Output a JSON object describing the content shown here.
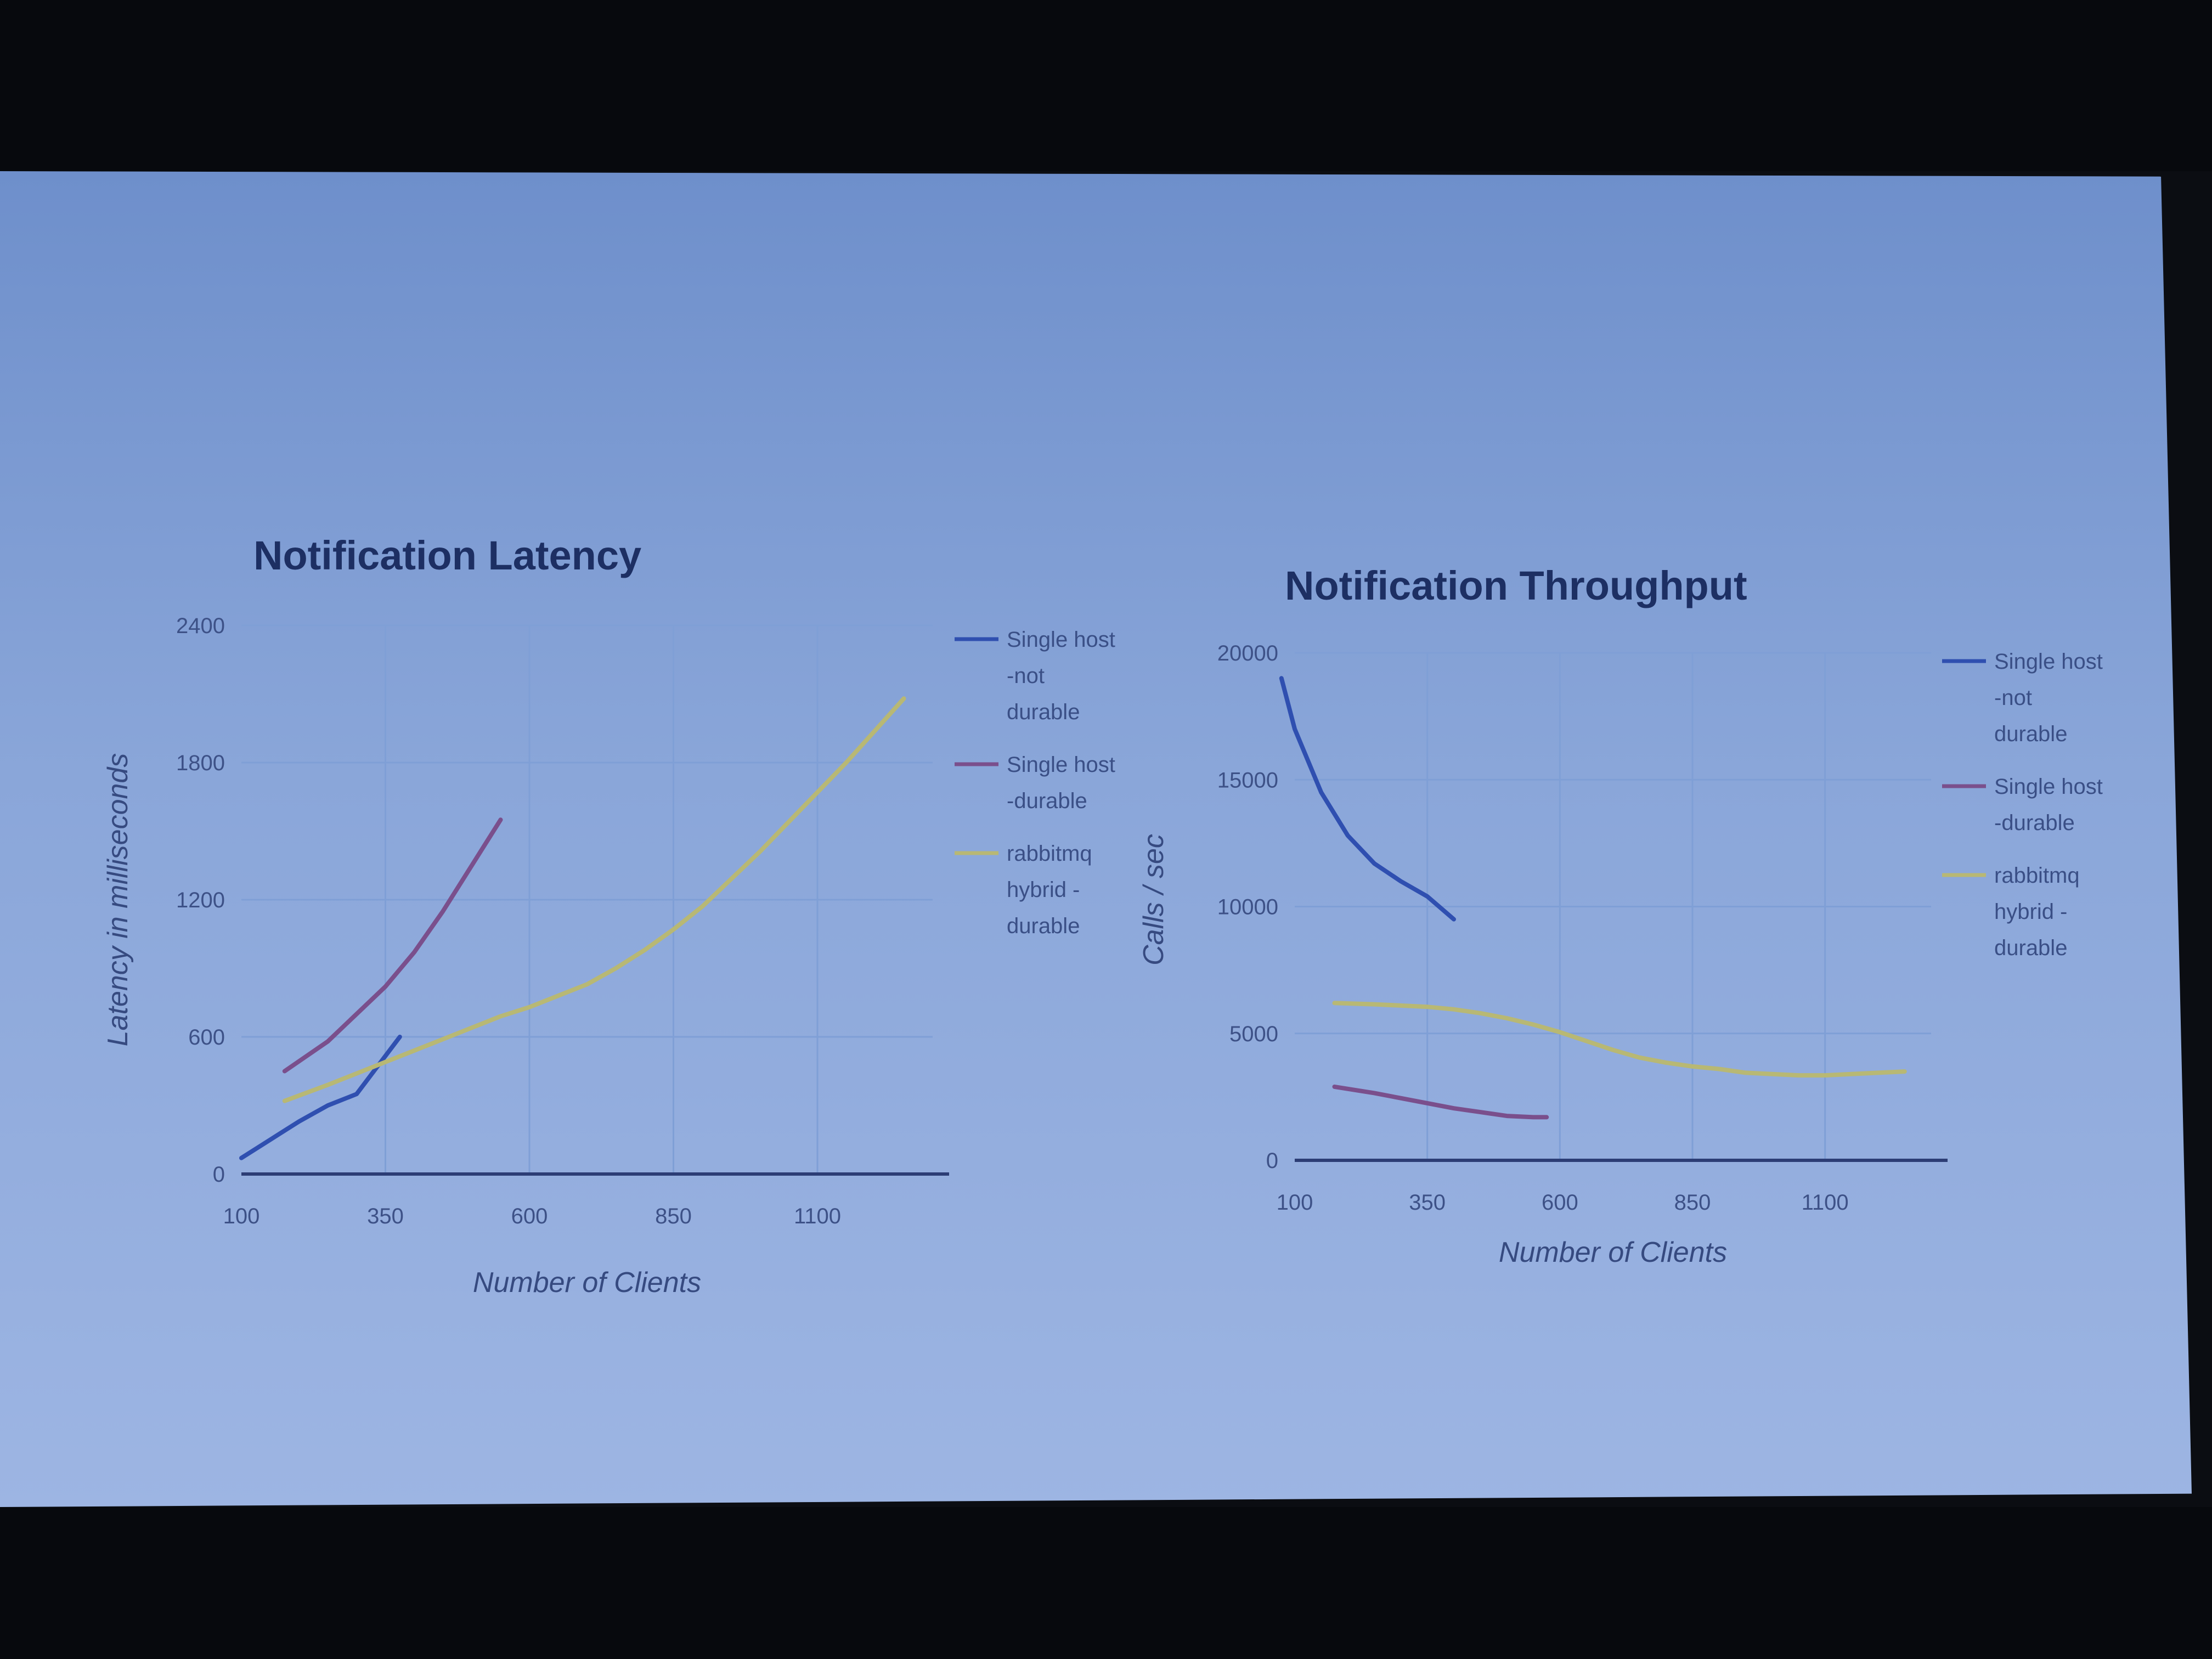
{
  "colors": {
    "slide_background": "#8aa6d9",
    "series_blue": "#2f4fb0",
    "series_purple": "#7a4f8c",
    "series_yellow": "#b8b874",
    "axis": "#2c3d75",
    "gridline": "#7f9fd6"
  },
  "chart_data": [
    {
      "type": "line",
      "title": "Notification Latency",
      "xlabel": "Number of Clients",
      "ylabel": "Latency in milliseconds",
      "xlim": [
        100,
        1300
      ],
      "ylim": [
        0,
        2400
      ],
      "x_ticks": [
        "100",
        "350",
        "600",
        "850",
        "1100"
      ],
      "y_ticks": [
        "0",
        "600",
        "1200",
        "1800",
        "2400"
      ],
      "grid": true,
      "legend_position": "right",
      "series": [
        {
          "name": "Single host -not durable",
          "color": "#2f4fb0",
          "x": [
            100,
            150,
            200,
            250,
            300,
            330,
            375
          ],
          "y": [
            70,
            150,
            230,
            300,
            350,
            450,
            600
          ]
        },
        {
          "name": "Single host -durable",
          "color": "#7a4f8c",
          "x": [
            175,
            250,
            300,
            350,
            400,
            450,
            500,
            550
          ],
          "y": [
            450,
            580,
            700,
            820,
            970,
            1150,
            1350,
            1550
          ]
        },
        {
          "name": "rabbitmq hybrid -durable",
          "color": "#b8b874",
          "x": [
            175,
            250,
            300,
            350,
            400,
            450,
            500,
            550,
            600,
            650,
            700,
            750,
            800,
            850,
            900,
            950,
            1000,
            1050,
            1100,
            1150,
            1200,
            1250
          ],
          "y": [
            320,
            390,
            440,
            490,
            540,
            590,
            640,
            690,
            730,
            780,
            830,
            900,
            980,
            1070,
            1170,
            1290,
            1410,
            1540,
            1670,
            1800,
            1940,
            2080
          ]
        }
      ]
    },
    {
      "type": "line",
      "title": "Notification Throughput",
      "xlabel": "Number of Clients",
      "ylabel": "Calls / sec",
      "xlim": [
        100,
        1300
      ],
      "ylim": [
        0,
        20000
      ],
      "x_ticks": [
        "100",
        "350",
        "600",
        "850",
        "1100"
      ],
      "y_ticks": [
        "0",
        "5000",
        "10000",
        "15000",
        "20000"
      ],
      "grid": true,
      "legend_position": "right",
      "series": [
        {
          "name": "Single host -not durable",
          "color": "#2f4fb0",
          "x": [
            75,
            100,
            150,
            200,
            250,
            300,
            350,
            400
          ],
          "y": [
            19000,
            17000,
            14500,
            12800,
            11700,
            11000,
            10400,
            9500
          ]
        },
        {
          "name": "Single host -durable",
          "color": "#7a4f8c",
          "x": [
            175,
            250,
            300,
            350,
            400,
            450,
            500,
            550,
            575
          ],
          "y": [
            2900,
            2650,
            2450,
            2250,
            2050,
            1900,
            1750,
            1700,
            1700
          ]
        },
        {
          "name": "rabbitmq hybrid -durable",
          "color": "#b8b874",
          "x": [
            175,
            250,
            300,
            350,
            400,
            450,
            500,
            550,
            600,
            650,
            700,
            750,
            800,
            850,
            900,
            950,
            1000,
            1050,
            1100,
            1150,
            1200,
            1250
          ],
          "y": [
            6200,
            6150,
            6100,
            6050,
            5950,
            5800,
            5600,
            5350,
            5050,
            4700,
            4350,
            4050,
            3850,
            3700,
            3600,
            3450,
            3400,
            3350,
            3350,
            3400,
            3450,
            3500
          ]
        }
      ]
    }
  ],
  "legend": {
    "entries": [
      {
        "lines": [
          "Single host",
          "-not",
          "durable"
        ]
      },
      {
        "lines": [
          "Single host",
          "-durable"
        ]
      },
      {
        "lines": [
          "rabbitmq",
          "hybrid -",
          "durable"
        ]
      }
    ]
  }
}
